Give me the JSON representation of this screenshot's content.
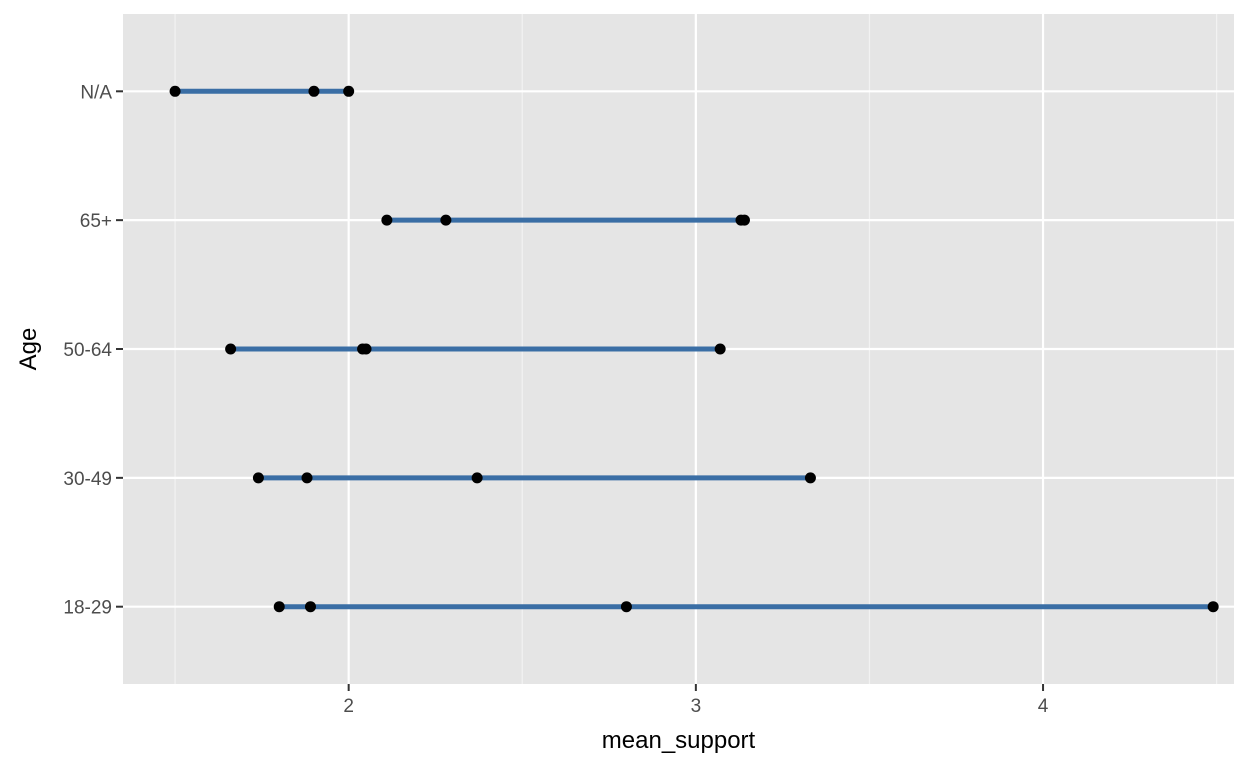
{
  "chart_data": {
    "type": "dumbbell",
    "title": "",
    "xlabel": "mean_support",
    "ylabel": "Age",
    "xlim": [
      1.35,
      4.55
    ],
    "x_ticks": [
      2,
      3,
      4
    ],
    "categories": [
      "18-29",
      "30-49",
      "50-64",
      "65+",
      "N/A"
    ],
    "points": {
      "18-29": [
        1.8,
        1.89,
        2.8,
        4.49
      ],
      "30-49": [
        1.74,
        1.88,
        2.37,
        3.33
      ],
      "50-64": [
        1.66,
        2.04,
        2.05,
        3.07
      ],
      "65+": [
        2.11,
        2.28,
        3.13,
        3.14
      ],
      "N/A": [
        1.5,
        1.9,
        2.0
      ]
    },
    "grid": true,
    "legend": "none",
    "colors": {
      "panel_background": "#e5e5e5",
      "grid_major": "#ffffff",
      "grid_minor": "#f2f2f2",
      "segment": "#3a6ea5",
      "point": "#000000",
      "tick": "#333333",
      "tick_label": "#4d4d4d",
      "axis_title": "#000000"
    }
  }
}
